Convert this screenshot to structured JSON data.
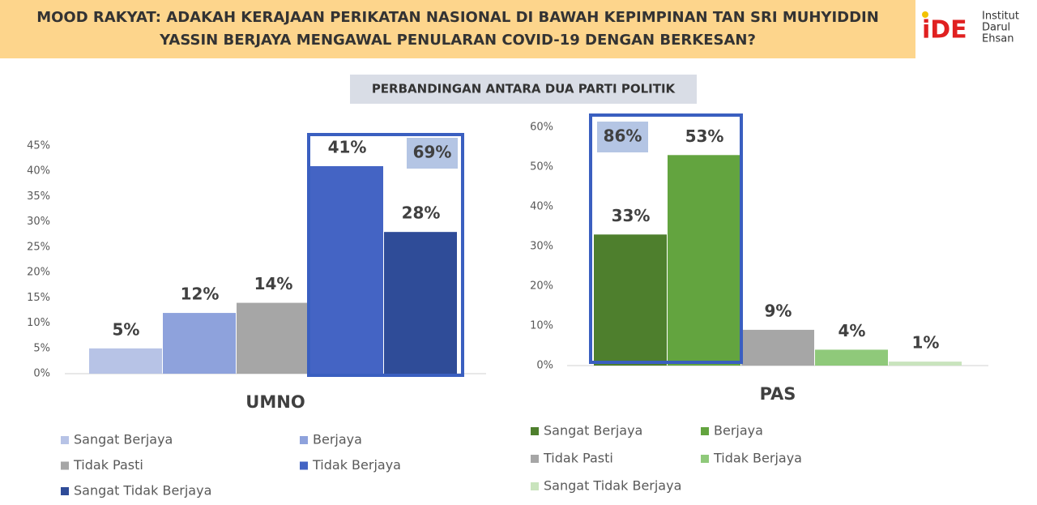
{
  "header": {
    "title_lines": [
      "MOOD RAKYAT: ADAKAH KERAJAAN PERIKATAN NASIONAL DI BAWAH KEPIMPINAN TAN SRI MUHYIDDIN",
      "YASSIN BERJAYA MENGAWAL PENULARAN COVID-19 DENGAN BERKESAN?"
    ],
    "logo_mark": "iDE",
    "logo_text": [
      "Institut",
      "Darul",
      "Ehsan"
    ]
  },
  "subtitle": "PERBANDINGAN ANTARA DUA PARTI POLITIK",
  "chart_data": [
    {
      "type": "bar",
      "x_label": "UMNO",
      "categories": [
        "Sangat Berjaya",
        "Berjaya",
        "Tidak Pasti",
        "Tidak Berjaya",
        "Sangat Tidak Berjaya"
      ],
      "values": [
        5,
        12,
        14,
        41,
        28
      ],
      "value_labels": [
        "5%",
        "12%",
        "14%",
        "41%",
        "28%"
      ],
      "colors": [
        "#b7c3e6",
        "#8ea2dc",
        "#a6a6a6",
        "#4464c4",
        "#2f4c98"
      ],
      "ylim": [
        0,
        45
      ],
      "yticks": [
        {
          "value": 0,
          "label": "0%"
        },
        {
          "value": 5,
          "label": "5%"
        },
        {
          "value": 10,
          "label": "10%"
        },
        {
          "value": 15,
          "label": "15%"
        },
        {
          "value": 20,
          "label": "20%"
        },
        {
          "value": 25,
          "label": "25%"
        },
        {
          "value": 30,
          "label": "30%"
        },
        {
          "value": 35,
          "label": "35%"
        },
        {
          "value": 40,
          "label": "40%"
        },
        {
          "value": 45,
          "label": "45%"
        }
      ],
      "annotation": "69%"
    },
    {
      "type": "bar",
      "x_label": "PAS",
      "categories": [
        "Sangat Berjaya",
        "Berjaya",
        "Tidak Pasti",
        "Tidak Berjaya",
        "Sangat Tidak Berjaya"
      ],
      "values": [
        33,
        53,
        9,
        4,
        1
      ],
      "value_labels": [
        "33%",
        "53%",
        "9%",
        "4%",
        "1%"
      ],
      "colors": [
        "#4e7f2d",
        "#63a43f",
        "#a6a6a6",
        "#8fc97a",
        "#c9e4bd"
      ],
      "ylim": [
        0,
        60
      ],
      "yticks": [
        {
          "value": 0,
          "label": "0%"
        },
        {
          "value": 10,
          "label": "10%"
        },
        {
          "value": 20,
          "label": "20%"
        },
        {
          "value": 30,
          "label": "30%"
        },
        {
          "value": 40,
          "label": "40%"
        },
        {
          "value": 50,
          "label": "50%"
        },
        {
          "value": 60,
          "label": "60%"
        }
      ],
      "annotation": "86%"
    }
  ]
}
